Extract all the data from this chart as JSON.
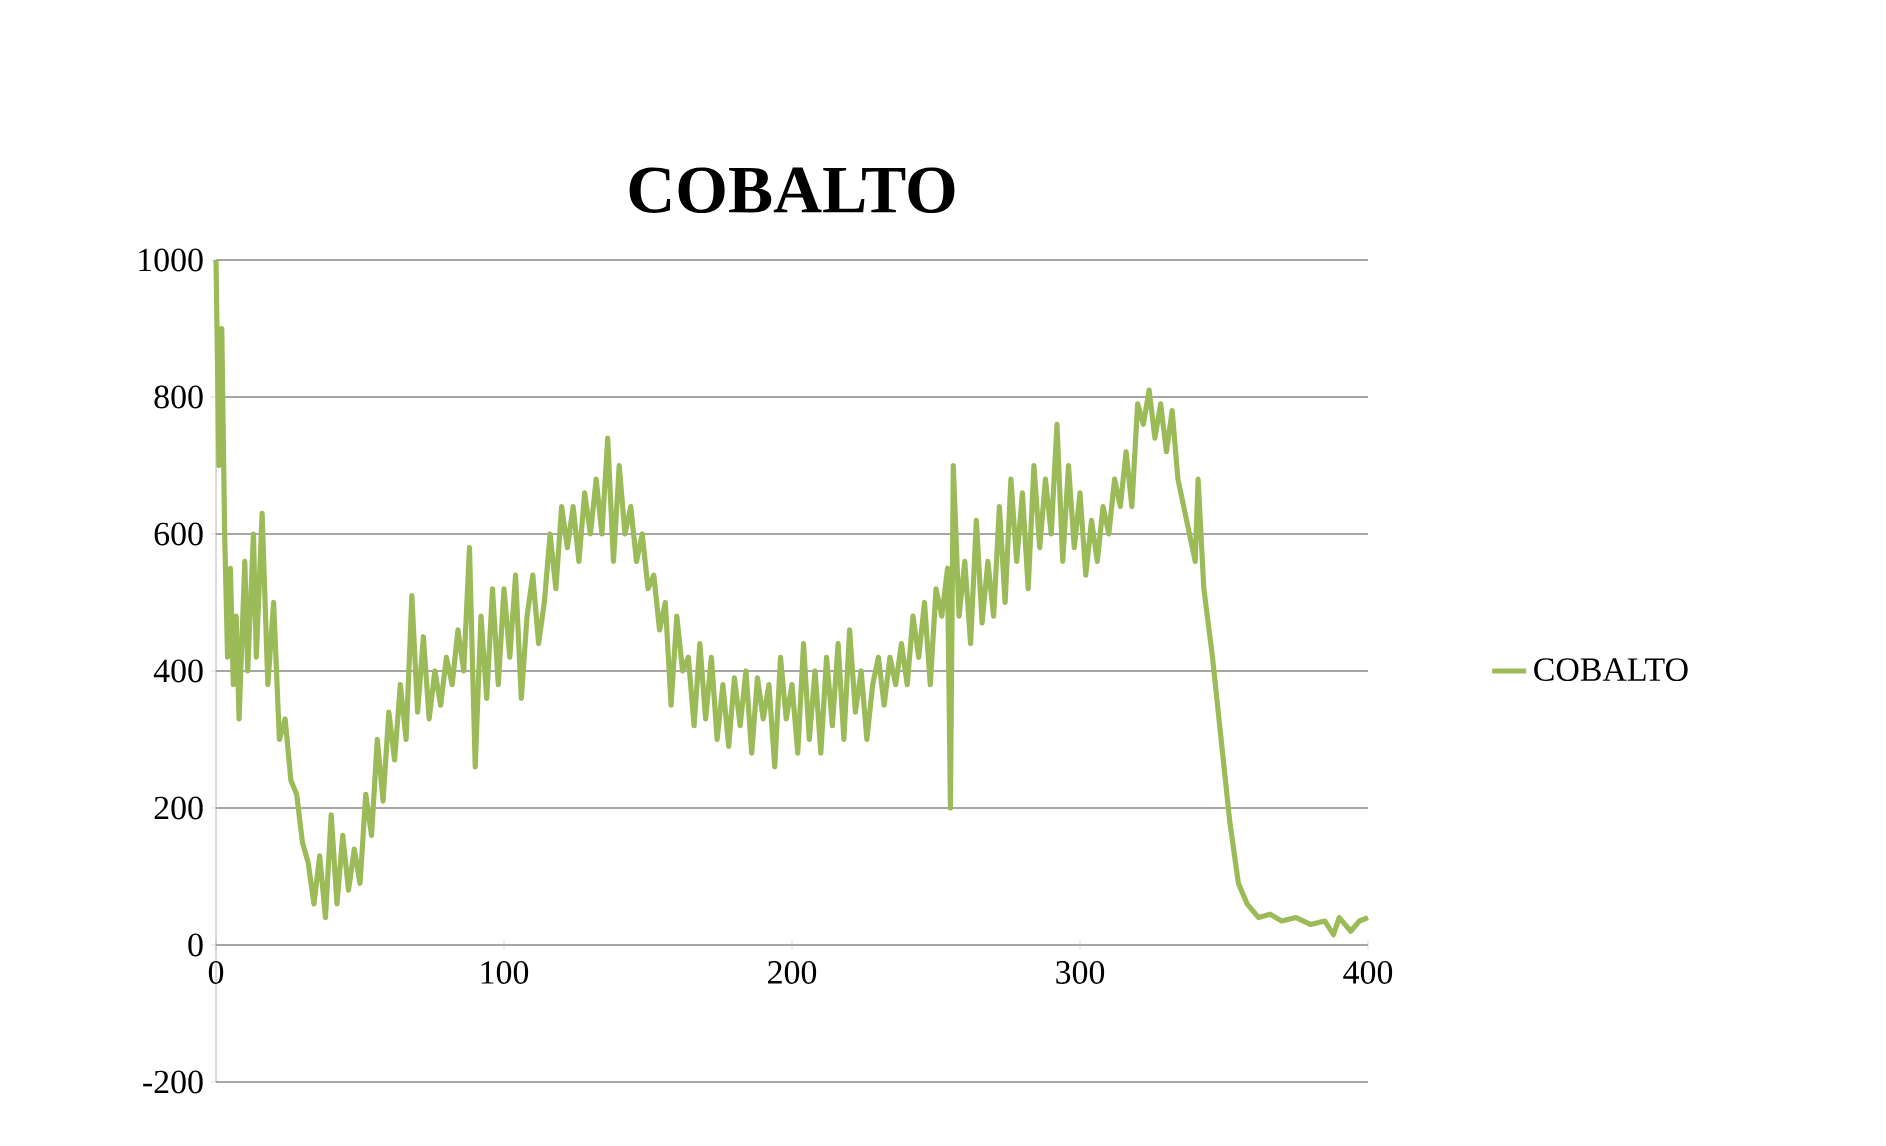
{
  "chart_data": {
    "type": "line",
    "title": "COBALTO",
    "x": [
      0,
      1,
      2,
      3,
      4,
      5,
      6,
      7,
      8,
      10,
      11,
      13,
      14,
      16,
      18,
      20,
      22,
      24,
      26,
      28,
      30,
      32,
      34,
      36,
      38,
      40,
      42,
      44,
      46,
      48,
      50,
      52,
      54,
      56,
      58,
      60,
      62,
      64,
      66,
      68,
      70,
      72,
      74,
      76,
      78,
      80,
      82,
      84,
      86,
      88,
      90,
      92,
      94,
      96,
      98,
      100,
      102,
      104,
      106,
      108,
      110,
      112,
      114,
      116,
      118,
      120,
      122,
      124,
      126,
      128,
      130,
      132,
      134,
      136,
      138,
      140,
      142,
      144,
      146,
      148,
      150,
      152,
      154,
      156,
      158,
      160,
      162,
      164,
      166,
      168,
      170,
      172,
      174,
      176,
      178,
      180,
      182,
      184,
      186,
      188,
      190,
      192,
      194,
      196,
      198,
      200,
      202,
      204,
      206,
      208,
      210,
      212,
      214,
      216,
      218,
      220,
      222,
      224,
      226,
      228,
      230,
      232,
      234,
      236,
      238,
      240,
      242,
      244,
      246,
      248,
      250,
      252,
      254,
      255,
      256,
      258,
      260,
      262,
      264,
      266,
      268,
      270,
      272,
      274,
      276,
      278,
      280,
      282,
      284,
      286,
      288,
      290,
      292,
      294,
      296,
      298,
      300,
      302,
      304,
      306,
      308,
      310,
      312,
      314,
      316,
      318,
      320,
      322,
      324,
      326,
      328,
      330,
      332,
      334,
      336,
      338,
      340,
      341,
      343,
      346,
      349,
      352,
      355,
      358,
      362,
      366,
      370,
      375,
      380,
      385,
      388,
      390,
      394,
      397,
      400
    ],
    "series": [
      {
        "name": "COBALTO",
        "color": "#9bbb59",
        "values": [
          1000,
          700,
          900,
          600,
          420,
          550,
          380,
          480,
          330,
          560,
          400,
          600,
          420,
          630,
          380,
          500,
          300,
          330,
          240,
          220,
          150,
          120,
          60,
          130,
          40,
          190,
          60,
          160,
          80,
          140,
          90,
          220,
          160,
          300,
          210,
          340,
          270,
          380,
          300,
          510,
          340,
          450,
          330,
          400,
          350,
          420,
          380,
          460,
          400,
          580,
          260,
          480,
          360,
          520,
          380,
          520,
          420,
          540,
          360,
          480,
          540,
          440,
          500,
          600,
          520,
          640,
          580,
          640,
          560,
          660,
          600,
          680,
          600,
          740,
          560,
          700,
          600,
          640,
          560,
          600,
          520,
          540,
          460,
          500,
          350,
          480,
          400,
          420,
          320,
          440,
          330,
          420,
          300,
          380,
          290,
          390,
          320,
          400,
          280,
          390,
          330,
          380,
          260,
          420,
          330,
          380,
          280,
          440,
          300,
          400,
          280,
          420,
          320,
          440,
          300,
          460,
          340,
          400,
          300,
          380,
          420,
          350,
          420,
          380,
          440,
          380,
          480,
          420,
          500,
          380,
          520,
          480,
          550,
          200,
          700,
          480,
          560,
          440,
          620,
          470,
          560,
          480,
          640,
          500,
          680,
          560,
          660,
          520,
          700,
          580,
          680,
          600,
          760,
          560,
          700,
          580,
          660,
          540,
          620,
          560,
          640,
          600,
          680,
          640,
          720,
          640,
          790,
          760,
          810,
          740,
          790,
          720,
          780,
          680,
          640,
          600,
          560,
          680,
          520,
          420,
          300,
          180,
          90,
          60,
          40,
          45,
          35,
          40,
          30,
          35,
          15,
          40,
          20,
          35,
          40
        ]
      }
    ],
    "xlim": [
      0,
      400
    ],
    "xticks": [
      0,
      100,
      200,
      300,
      400
    ],
    "ylim": [
      -200,
      1000
    ],
    "yticks": [
      -200,
      0,
      200,
      400,
      600,
      800,
      1000
    ],
    "grid": "y",
    "legend": "right",
    "line_style": "solid",
    "marker": "none"
  }
}
